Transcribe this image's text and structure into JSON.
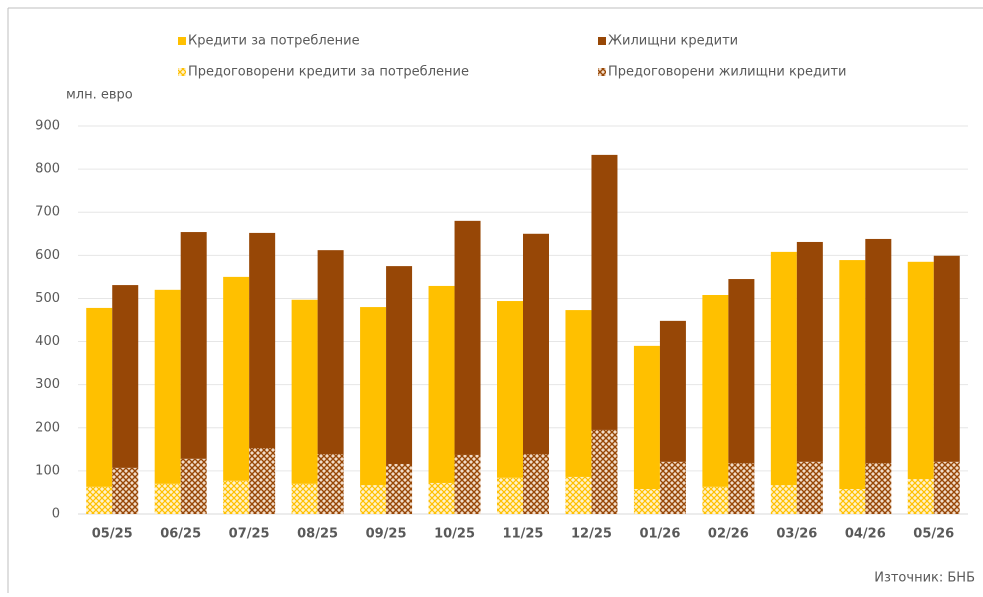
{
  "chart_data": {
    "type": "grouped_stacked_bar",
    "y_label": "млн. евро",
    "source": "Източник: БНБ",
    "categories": [
      "05/25",
      "06/25",
      "07/25",
      "08/25",
      "09/25",
      "10/25",
      "11/25",
      "12/25",
      "01/26",
      "02/26",
      "03/26",
      "04/26",
      "05/26"
    ],
    "series": [
      {
        "name": "Предоговорени кредити за потребление",
        "color": "#ffc000",
        "pattern": "dots",
        "stack": 0,
        "values": [
          63,
          70,
          77,
          70,
          67,
          72,
          84,
          86,
          58,
          63,
          67,
          58,
          81
        ]
      },
      {
        "name": "Кредити за потребление",
        "color": "#ffc000",
        "pattern": "solid",
        "stack": 0,
        "values": [
          415,
          450,
          473,
          427,
          413,
          457,
          410,
          387,
          332,
          445,
          541,
          531,
          504
        ]
      },
      {
        "name": "Предоговорени жилищни кредити",
        "color": "#974706",
        "pattern": "cross",
        "stack": 1,
        "values": [
          107,
          128,
          153,
          139,
          116,
          137,
          139,
          195,
          121,
          118,
          121,
          118,
          121
        ]
      },
      {
        "name": "Жилищни кредити",
        "color": "#974706",
        "pattern": "solid",
        "stack": 1,
        "values": [
          424,
          526,
          499,
          473,
          459,
          543,
          511,
          638,
          327,
          427,
          510,
          520,
          478
        ]
      }
    ],
    "legend_order": [
      1,
      3,
      0,
      2
    ],
    "ylim": [
      0,
      900
    ],
    "yticks": [
      0,
      100,
      200,
      300,
      400,
      500,
      600,
      700,
      800,
      900
    ],
    "grid": true
  }
}
